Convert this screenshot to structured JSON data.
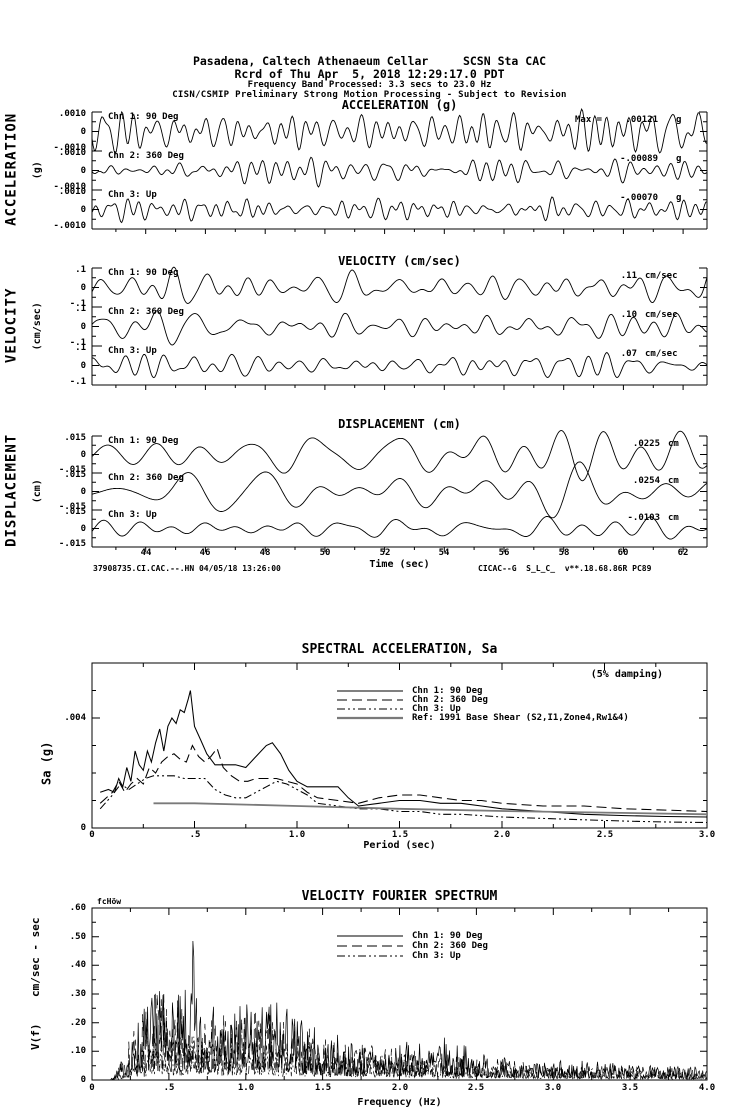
{
  "header": {
    "line1": "Pasadena, Caltech Athenaeum Cellar     SCSN Sta CAC",
    "line2": "Rcrd of Thu Apr  5, 2018 12:29:17.0 PDT",
    "line3": "Frequency Band Processed: 3.3 secs to 23.0 Hz",
    "line4": "CISN/CSMIP Preliminary Strong Motion Processing - Subject to Revision"
  },
  "time_axis": {
    "xlabel": "Time (sec)",
    "tick_labels": [
      "44",
      "46",
      "48",
      "50",
      "52",
      "54",
      "56",
      "58",
      "60",
      "62"
    ],
    "tick_values": [
      44,
      46,
      48,
      50,
      52,
      54,
      56,
      58,
      60,
      62
    ],
    "range": [
      42.2,
      62.8
    ]
  },
  "footer": {
    "left": "37908735.CI.CAC.--.HN 04/05/18 13:26:00",
    "right": "CICAC--G  S_L_C_  v**.18.68.86R PC89"
  },
  "chart_data": [
    {
      "type": "line",
      "kind": "seismic-timeseries",
      "title": "ACCELERATION (g)",
      "ylabel": "ACCELERATION",
      "ylabel_units": "(g)",
      "ytick_labels": [
        ".0010",
        "0",
        "-.0010"
      ],
      "ytick_value": 0.001,
      "traces": [
        {
          "name": "Chn 1: 90 Deg",
          "max_prefix": "Max =",
          "max_value": ".00121",
          "unit": "g",
          "peak": 0.00121,
          "seed": 101,
          "cycles": 52
        },
        {
          "name": "Chn 2: 360 Deg",
          "max_value": "-.00089",
          "unit": "g",
          "peak": -0.00089,
          "seed": 102,
          "cycles": 46
        },
        {
          "name": "Chn 3: Up",
          "max_value": "-.00070",
          "unit": "g",
          "peak": -0.0007,
          "seed": 103,
          "cycles": 56
        }
      ]
    },
    {
      "type": "line",
      "kind": "seismic-timeseries",
      "title": "VELOCITY (cm/sec)",
      "ylabel": "VELOCITY",
      "ylabel_units": "(cm/sec)",
      "ytick_labels": [
        ".1",
        "0",
        "-.1"
      ],
      "ytick_value": 0.1,
      "traces": [
        {
          "name": "Chn 1: 90 Deg",
          "max_value": ".11",
          "unit": "cm/sec",
          "peak": 0.11,
          "seed": 104,
          "cycles": 30
        },
        {
          "name": "Chn 2: 360 Deg",
          "max_value": ".10",
          "unit": "cm/sec",
          "peak": 0.1,
          "seed": 105,
          "cycles": 27
        },
        {
          "name": "Chn 3: Up",
          "max_value": ".07",
          "unit": "cm/sec",
          "peak": 0.07,
          "seed": 106,
          "cycles": 33
        }
      ]
    },
    {
      "type": "line",
      "kind": "seismic-timeseries",
      "title": "DISPLACEMENT (cm)",
      "ylabel": "DISPLACEMENT",
      "ylabel_units": "(cm)",
      "ytick_labels": [
        ".015",
        "0",
        "-.015"
      ],
      "ytick_value": 0.015,
      "traces": [
        {
          "name": "Chn 1: 90 Deg",
          "max_value": ".0225",
          "unit": "cm",
          "peak": 0.0225,
          "seed": 107,
          "cycles": 15
        },
        {
          "name": "Chn 2: 360 Deg",
          "max_value": ".0254",
          "unit": "cm",
          "peak": 0.0254,
          "seed": 108,
          "cycles": 13
        },
        {
          "name": "Chn 3: Up",
          "max_value": "-.0103",
          "unit": "cm",
          "peak": -0.0103,
          "seed": 109,
          "cycles": 18
        }
      ]
    },
    {
      "type": "line",
      "kind": "response-spectrum",
      "title": "SPECTRAL ACCELERATION, Sa",
      "xlabel": "Period (sec)",
      "ylabel": "Sa (g)",
      "annotation": "(5% damping)",
      "xlim": [
        0,
        3.0
      ],
      "ylim": [
        0,
        0.006
      ],
      "xtick_labels": [
        "0",
        ".5",
        "1.0",
        "1.5",
        "2.0",
        "2.5",
        "3.0"
      ],
      "ytick_labels": [
        "0",
        ".004"
      ],
      "grid": false,
      "legend_position": "top-center-inside",
      "series": [
        {
          "name": "Chn 1: 90 Deg",
          "style": "solid",
          "x": [
            0.04,
            0.08,
            0.11,
            0.13,
            0.15,
            0.17,
            0.19,
            0.21,
            0.23,
            0.25,
            0.27,
            0.29,
            0.31,
            0.33,
            0.35,
            0.37,
            0.39,
            0.41,
            0.43,
            0.45,
            0.47,
            0.48,
            0.5,
            0.53,
            0.56,
            0.6,
            0.65,
            0.7,
            0.75,
            0.8,
            0.85,
            0.88,
            0.92,
            0.96,
            1.0,
            1.05,
            1.1,
            1.15,
            1.2,
            1.25,
            1.3,
            1.4,
            1.5,
            1.6,
            1.7,
            1.8,
            1.9,
            2.0,
            2.2,
            2.4,
            2.6,
            2.8,
            3.0
          ],
          "y": [
            0.0013,
            0.0014,
            0.0013,
            0.0018,
            0.0015,
            0.0022,
            0.0017,
            0.0028,
            0.0023,
            0.0021,
            0.0028,
            0.0024,
            0.0031,
            0.0036,
            0.0028,
            0.0037,
            0.004,
            0.0038,
            0.0043,
            0.0042,
            0.0047,
            0.005,
            0.0037,
            0.0032,
            0.0027,
            0.0023,
            0.0023,
            0.0023,
            0.0022,
            0.0026,
            0.003,
            0.0031,
            0.0027,
            0.0021,
            0.0017,
            0.0015,
            0.0015,
            0.0015,
            0.0015,
            0.0011,
            0.0008,
            0.0009,
            0.001,
            0.001,
            0.0009,
            0.0009,
            0.0008,
            0.0007,
            0.0006,
            0.0005,
            0.00045,
            0.00042,
            0.0004
          ]
        },
        {
          "name": "Chn 2: 360 Deg",
          "style": "long-dash",
          "x": [
            0.04,
            0.1,
            0.13,
            0.16,
            0.19,
            0.22,
            0.25,
            0.28,
            0.31,
            0.34,
            0.37,
            0.4,
            0.43,
            0.46,
            0.49,
            0.52,
            0.55,
            0.58,
            0.61,
            0.64,
            0.68,
            0.72,
            0.76,
            0.8,
            0.85,
            0.9,
            0.95,
            1.0,
            1.05,
            1.1,
            1.2,
            1.3,
            1.4,
            1.5,
            1.6,
            1.7,
            1.8,
            1.9,
            2.0,
            2.2,
            2.4,
            2.6,
            2.8,
            3.0
          ],
          "y": [
            0.0009,
            0.0013,
            0.0017,
            0.0013,
            0.0016,
            0.0018,
            0.0016,
            0.0022,
            0.002,
            0.0024,
            0.0026,
            0.0027,
            0.0025,
            0.0024,
            0.003,
            0.0026,
            0.0024,
            0.0026,
            0.0029,
            0.0022,
            0.0019,
            0.0017,
            0.0017,
            0.0018,
            0.0018,
            0.0018,
            0.0017,
            0.0016,
            0.0013,
            0.0011,
            0.001,
            0.0009,
            0.0011,
            0.0012,
            0.0012,
            0.0011,
            0.001,
            0.001,
            0.0009,
            0.0008,
            0.0008,
            0.0007,
            0.00065,
            0.0006
          ]
        },
        {
          "name": "Chn 3: Up",
          "style": "dash-dot-dot",
          "x": [
            0.04,
            0.1,
            0.14,
            0.18,
            0.22,
            0.26,
            0.3,
            0.35,
            0.4,
            0.45,
            0.5,
            0.55,
            0.6,
            0.65,
            0.7,
            0.75,
            0.8,
            0.85,
            0.9,
            0.95,
            1.0,
            1.05,
            1.1,
            1.2,
            1.3,
            1.4,
            1.5,
            1.6,
            1.7,
            1.8,
            1.9,
            2.0,
            2.2,
            2.4,
            2.6,
            2.8,
            3.0
          ],
          "y": [
            0.0007,
            0.0012,
            0.0016,
            0.0014,
            0.0016,
            0.0018,
            0.0019,
            0.0019,
            0.0019,
            0.0018,
            0.0018,
            0.0018,
            0.0014,
            0.0012,
            0.0011,
            0.0011,
            0.0013,
            0.0015,
            0.0017,
            0.0016,
            0.0014,
            0.0012,
            0.0009,
            0.0008,
            0.0007,
            0.0007,
            0.0006,
            0.0006,
            0.0005,
            0.0005,
            0.00045,
            0.0004,
            0.00035,
            0.0003,
            0.00025,
            0.00022,
            0.0002
          ]
        },
        {
          "name": "Ref: 1991 Base Shear (S2,I1,Zone4,Rw1&4)",
          "style": "solid-gray",
          "x": [
            0.3,
            0.5,
            0.75,
            1.0,
            1.5,
            2.0,
            2.5,
            3.0
          ],
          "y": [
            0.0009,
            0.0009,
            0.00085,
            0.0008,
            0.0007,
            0.00062,
            0.00056,
            0.0005
          ]
        }
      ]
    },
    {
      "type": "line",
      "kind": "fourier-spectrum",
      "title": "VELOCITY FOURIER SPECTRUM",
      "xlabel": "Frequency (Hz)",
      "ylabel": "V(f)    cm/sec - sec",
      "corner_label": "fcHöw",
      "xlim": [
        0,
        4.0
      ],
      "ylim": [
        0,
        0.6
      ],
      "xtick_labels": [
        "0",
        ".5",
        "1.0",
        "1.5",
        "2.0",
        "2.5",
        "3.0",
        "3.5",
        "4.0"
      ],
      "ytick_labels": [
        "0",
        ".10",
        ".20",
        ".30",
        ".40",
        ".50",
        ".60"
      ],
      "grid": false,
      "legend_position": "top-center-inside",
      "series": [
        {
          "name": "Chn 1: 90 Deg",
          "style": "solid",
          "seed": 7,
          "envelope": [
            [
              0.12,
              0
            ],
            [
              0.25,
              0.12
            ],
            [
              0.32,
              0.28
            ],
            [
              0.42,
              0.32
            ],
            [
              0.5,
              0.3
            ],
            [
              0.58,
              0.3
            ],
            [
              0.64,
              0.34
            ],
            [
              0.655,
              0.49
            ],
            [
              0.68,
              0.3
            ],
            [
              0.8,
              0.26
            ],
            [
              0.95,
              0.27
            ],
            [
              1.1,
              0.27
            ],
            [
              1.25,
              0.28
            ],
            [
              1.4,
              0.2
            ],
            [
              1.55,
              0.17
            ],
            [
              1.75,
              0.13
            ],
            [
              1.95,
              0.12
            ],
            [
              2.1,
              0.14
            ],
            [
              2.3,
              0.15
            ],
            [
              2.55,
              0.1
            ],
            [
              2.8,
              0.06
            ],
            [
              3.1,
              0.07
            ],
            [
              3.3,
              0.07
            ],
            [
              3.6,
              0.05
            ],
            [
              4.0,
              0.05
            ]
          ],
          "spikes": [
            [
              0.655,
              0.485
            ],
            [
              0.44,
              0.31
            ],
            [
              1.2,
              0.27
            ]
          ]
        },
        {
          "name": "Chn 2: 360 Deg",
          "style": "long-dash",
          "seed": 8,
          "envelope": [
            [
              0.12,
              0
            ],
            [
              0.28,
              0.18
            ],
            [
              0.4,
              0.31
            ],
            [
              0.52,
              0.3
            ],
            [
              0.65,
              0.26
            ],
            [
              0.8,
              0.24
            ],
            [
              1.0,
              0.26
            ],
            [
              1.2,
              0.26
            ],
            [
              1.45,
              0.17
            ],
            [
              1.7,
              0.13
            ],
            [
              2.0,
              0.12
            ],
            [
              2.3,
              0.1
            ],
            [
              2.6,
              0.08
            ],
            [
              3.0,
              0.05
            ],
            [
              3.5,
              0.05
            ],
            [
              4.0,
              0.04
            ]
          ],
          "spikes": [
            [
              0.47,
              0.3
            ]
          ]
        },
        {
          "name": "Chn 3: Up",
          "style": "dash-dot-dot",
          "seed": 9,
          "envelope": [
            [
              0.12,
              0
            ],
            [
              0.3,
              0.1
            ],
            [
              0.45,
              0.16
            ],
            [
              0.6,
              0.17
            ],
            [
              0.85,
              0.15
            ],
            [
              1.1,
              0.14
            ],
            [
              1.4,
              0.12
            ],
            [
              1.7,
              0.1
            ],
            [
              2.0,
              0.08
            ],
            [
              2.4,
              0.06
            ],
            [
              2.8,
              0.05
            ],
            [
              3.2,
              0.04
            ],
            [
              4.0,
              0.03
            ]
          ],
          "spikes": []
        }
      ]
    }
  ]
}
